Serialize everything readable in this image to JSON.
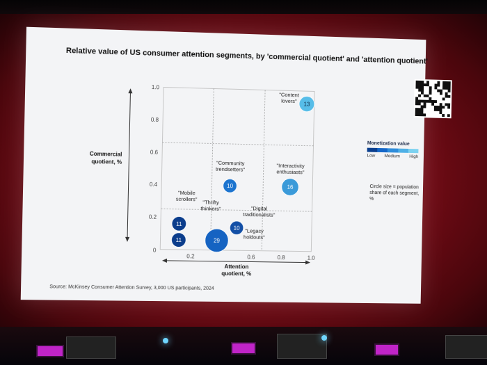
{
  "title": "Relative value of US consumer attention segments, by 'commercial quotient' and 'attention quotient'",
  "source": "Source: McKinsey Consumer Attention Survey, 3,000 US participants, 2024",
  "legend": {
    "title": "Monetization value",
    "labels": [
      "Low",
      "Medium",
      "High"
    ],
    "colors": [
      "#0a3f8f",
      "#1466c8",
      "#2f8ddb",
      "#4fb0e6",
      "#7dd2f0"
    ]
  },
  "size_note": "Circle size = population share of each segment, %",
  "chart_data": {
    "type": "scatter",
    "xlabel": "Attention quotient, %",
    "ylabel": "Commercial quotient, %",
    "xlim": [
      0,
      1.0
    ],
    "ylim": [
      0,
      1.0
    ],
    "xticks": [
      "0",
      "0.2",
      "0.6",
      "0.8",
      "1.0"
    ],
    "xtick_values": [
      0,
      0.2,
      0.6,
      0.8,
      1.0
    ],
    "yticks": [
      "0.2",
      "0.4",
      "0.6",
      "0.8",
      "1.0"
    ],
    "ytick_values": [
      0.2,
      0.4,
      0.6,
      0.8,
      1.0
    ],
    "segments": [
      {
        "label": "\"Content lovers\"",
        "x": 0.95,
        "y": 0.92,
        "size": 13,
        "monetization": "high",
        "color": "#57bde8"
      },
      {
        "label": "\"Community trendsetters\"",
        "x": 0.45,
        "y": 0.4,
        "size": 10,
        "monetization": "medium",
        "color": "#1c74cf"
      },
      {
        "label": "\"Interactivity enthusiasts\"",
        "x": 0.85,
        "y": 0.4,
        "size": 16,
        "monetization": "medium-high",
        "color": "#3a9ad9"
      },
      {
        "label": "\"Mobile scrollers\"",
        "x": 0.12,
        "y": 0.16,
        "size": 11,
        "monetization": "low",
        "color": "#0b3d8c"
      },
      {
        "label": "\"Thrifty thinkers\"",
        "x": 0.12,
        "y": 0.06,
        "size": 11,
        "monetization": "low",
        "color": "#0b3d8c"
      },
      {
        "label": "\"Digital traditionalists\"",
        "x": 0.5,
        "y": 0.14,
        "size": 10,
        "monetization": "low-medium",
        "color": "#124fa6"
      },
      {
        "label": "\"Legacy holdouts\"",
        "x": 0.37,
        "y": 0.06,
        "size": 29,
        "monetization": "medium",
        "color": "#1563c2"
      }
    ],
    "dividers": {
      "x": [
        0.33,
        0.67
      ],
      "y": [
        0.25,
        0.66
      ]
    },
    "grid": "dashed quadrant dividers"
  }
}
